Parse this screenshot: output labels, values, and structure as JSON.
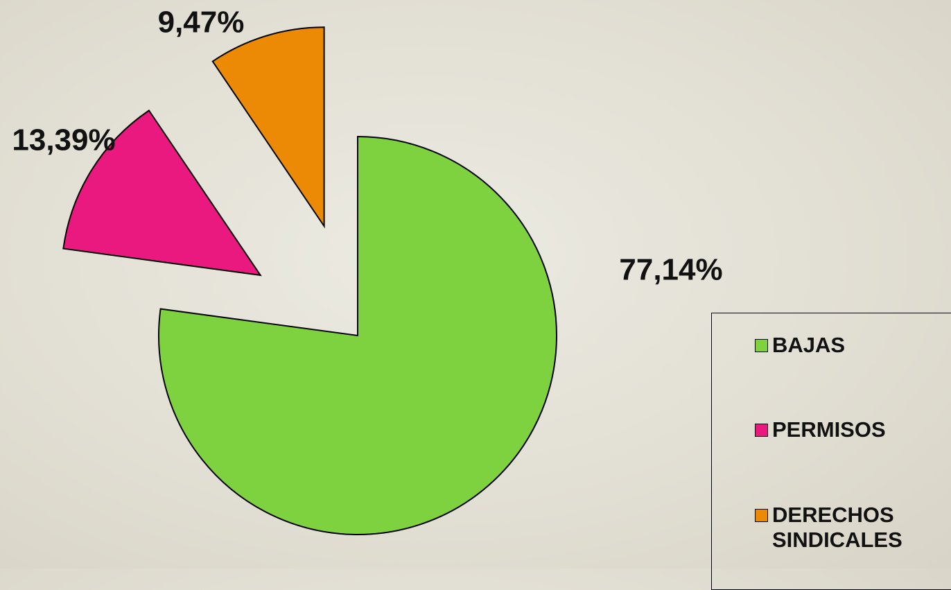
{
  "chart_data": {
    "type": "pie",
    "categories": [
      "BAJAS",
      "PERMISOS",
      "DERECHOS SINDICALES"
    ],
    "values": [
      77.14,
      13.39,
      9.47
    ],
    "value_labels": [
      "77,14%",
      "13,39%",
      "9,47%"
    ],
    "colors": [
      "#7ed23f",
      "#e9197f",
      "#ec8a06"
    ],
    "legend": "right"
  }
}
